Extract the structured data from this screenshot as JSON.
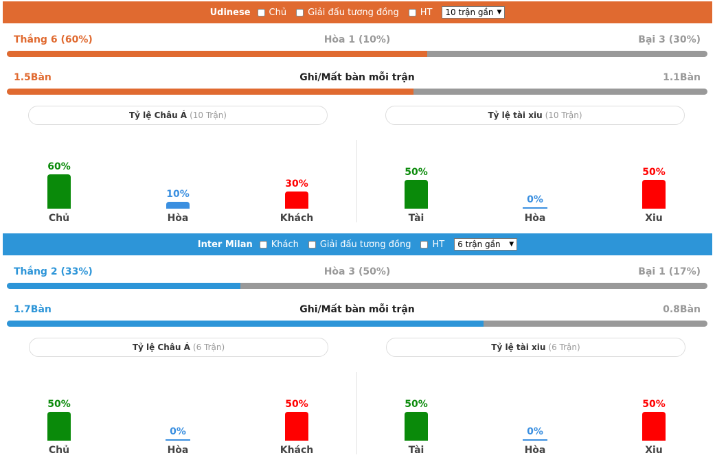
{
  "colors": {
    "udinese": "#e06a30",
    "inter": "#2d95d8",
    "green": "#0a8a0a",
    "red": "#ff0000",
    "blue": "#3a8fe0",
    "gray": "#999999"
  },
  "panels": [
    {
      "team": "Udinese",
      "venue_label": "Chủ",
      "similar_label": "Giải đấu tương đồng",
      "ht_label": "HT",
      "select_value": "10 trận gần",
      "win_text": "Thắng 6 (60%)",
      "draw_text": "Hòa 1 (10%)",
      "loss_text": "Bại 3 (30%)",
      "win_fraction": 0.6,
      "goals_left": "1.5Bàn",
      "goals_title": "Ghi/Mất bàn mỗi trận",
      "goals_right": "1.1Bàn",
      "goals_fraction": 0.58,
      "asia_title": "Tỷ lệ Châu Á",
      "asia_count": "(10 Trận)",
      "ou_title": "Tỷ lệ tài xiu",
      "ou_count": "(10 Trận)",
      "asia": [
        {
          "pct": "60%",
          "label": "Chủ",
          "value": 60,
          "color": "green"
        },
        {
          "pct": "10%",
          "label": "Hòa",
          "value": 10,
          "color": "blue"
        },
        {
          "pct": "30%",
          "label": "Khách",
          "value": 30,
          "color": "red"
        }
      ],
      "ou": [
        {
          "pct": "50%",
          "label": "Tài",
          "value": 50,
          "color": "green"
        },
        {
          "pct": "0%",
          "label": "Hòa",
          "value": 0,
          "color": "blue"
        },
        {
          "pct": "50%",
          "label": "Xiu",
          "value": 50,
          "color": "red"
        }
      ]
    },
    {
      "team": "Inter Milan",
      "venue_label": "Khách",
      "similar_label": "Giải đấu tương đồng",
      "ht_label": "HT",
      "select_value": "6 trận gần",
      "win_text": "Thắng 2 (33%)",
      "draw_text": "Hòa 3 (50%)",
      "loss_text": "Bại 1 (17%)",
      "win_fraction": 0.333,
      "goals_left": "1.7Bàn",
      "goals_title": "Ghi/Mất bàn mỗi trận",
      "goals_right": "0.8Bàn",
      "goals_fraction": 0.68,
      "asia_title": "Tỷ lệ Châu Á",
      "asia_count": "(6 Trận)",
      "ou_title": "Tỷ lệ tài xiu",
      "ou_count": "(6 Trận)",
      "asia": [
        {
          "pct": "50%",
          "label": "Chủ",
          "value": 50,
          "color": "green"
        },
        {
          "pct": "0%",
          "label": "Hòa",
          "value": 0,
          "color": "blue"
        },
        {
          "pct": "50%",
          "label": "Khách",
          "value": 50,
          "color": "red"
        }
      ],
      "ou": [
        {
          "pct": "50%",
          "label": "Tài",
          "value": 50,
          "color": "green"
        },
        {
          "pct": "0%",
          "label": "Hòa",
          "value": 0,
          "color": "blue"
        },
        {
          "pct": "50%",
          "label": "Xiu",
          "value": 50,
          "color": "red"
        }
      ]
    }
  ]
}
